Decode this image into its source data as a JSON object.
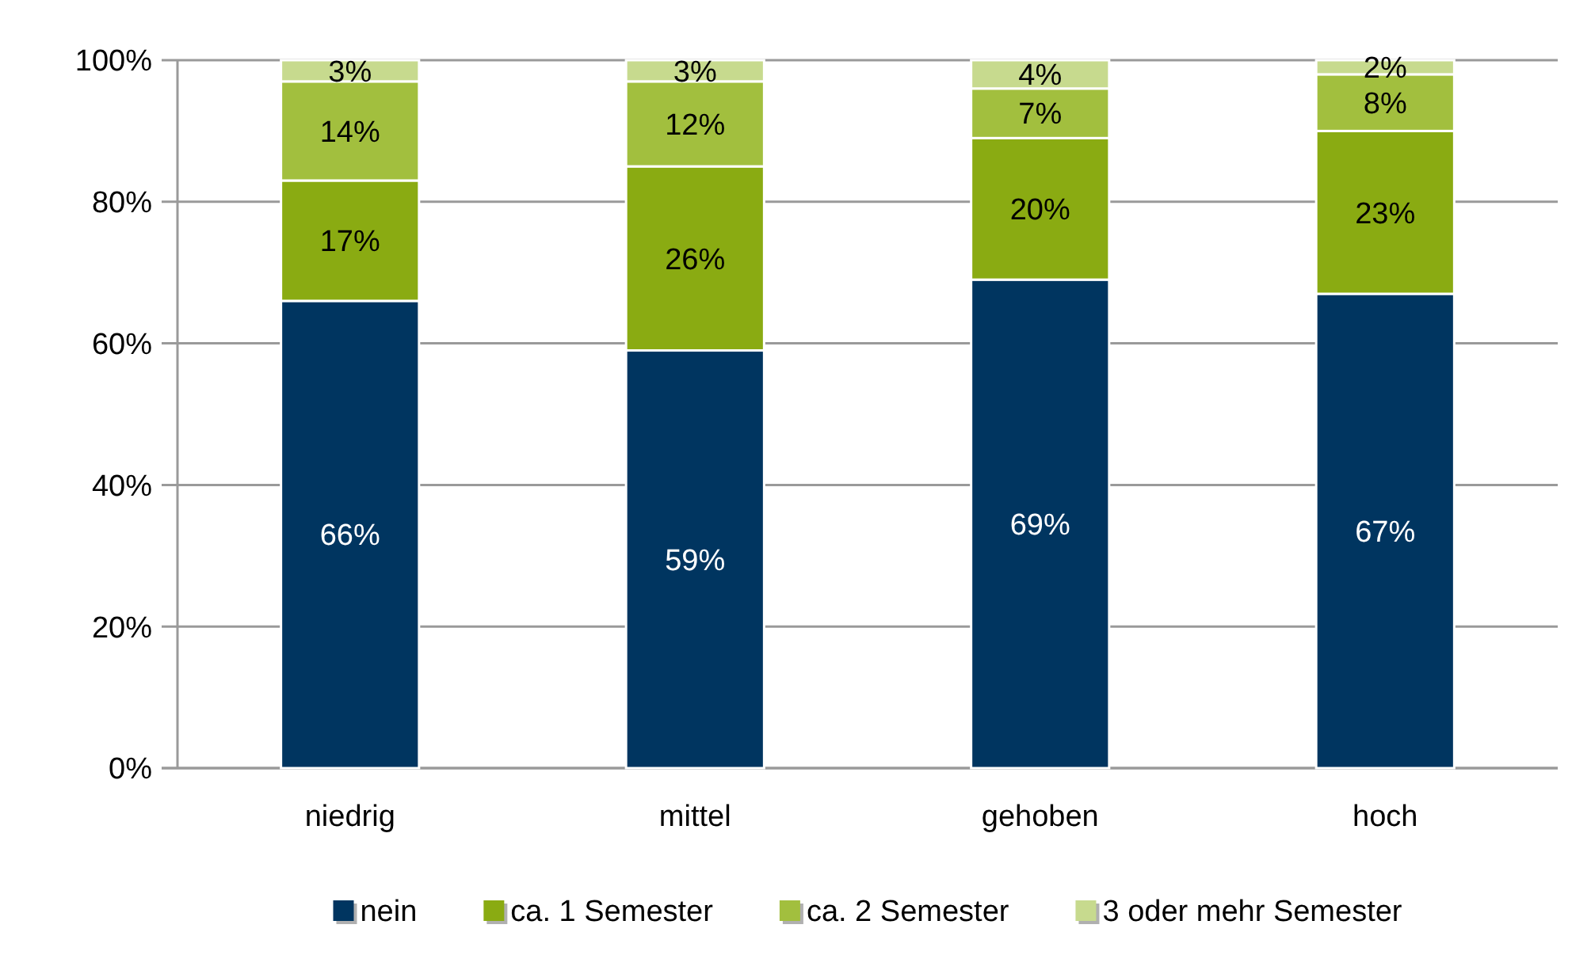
{
  "chart_data": {
    "type": "bar",
    "stacked": true,
    "categories": [
      "niedrig",
      "mittel",
      "gehoben",
      "hoch"
    ],
    "series": [
      {
        "name": "nein",
        "color": "#003560",
        "values": [
          66,
          59,
          69,
          67
        ]
      },
      {
        "name": "ca. 1 Semester",
        "color": "#8aab12",
        "values": [
          17,
          26,
          20,
          23
        ]
      },
      {
        "name": "ca. 2 Semester",
        "color": "#a2bf3e",
        "values": [
          14,
          12,
          7,
          8
        ]
      },
      {
        "name": "3 oder mehr Semester",
        "color": "#c7da8e",
        "values": [
          3,
          3,
          4,
          2
        ]
      }
    ],
    "ylim": [
      0,
      100
    ],
    "yticks": [
      {
        "value": 0,
        "label": "0%"
      },
      {
        "value": 20,
        "label": "20%"
      },
      {
        "value": 40,
        "label": "40%"
      },
      {
        "value": 60,
        "label": "60%"
      },
      {
        "value": 80,
        "label": "80%"
      },
      {
        "value": 100,
        "label": "100%"
      }
    ],
    "value_labels": [
      [
        "66%",
        "59%",
        "69%",
        "67%"
      ],
      [
        "17%",
        "26%",
        "20%",
        "23%"
      ],
      [
        "14%",
        "12%",
        "7%",
        "8%"
      ],
      [
        "3%",
        "3%",
        "4%",
        "2%"
      ]
    ],
    "grid": "y",
    "legend": "bottom"
  }
}
